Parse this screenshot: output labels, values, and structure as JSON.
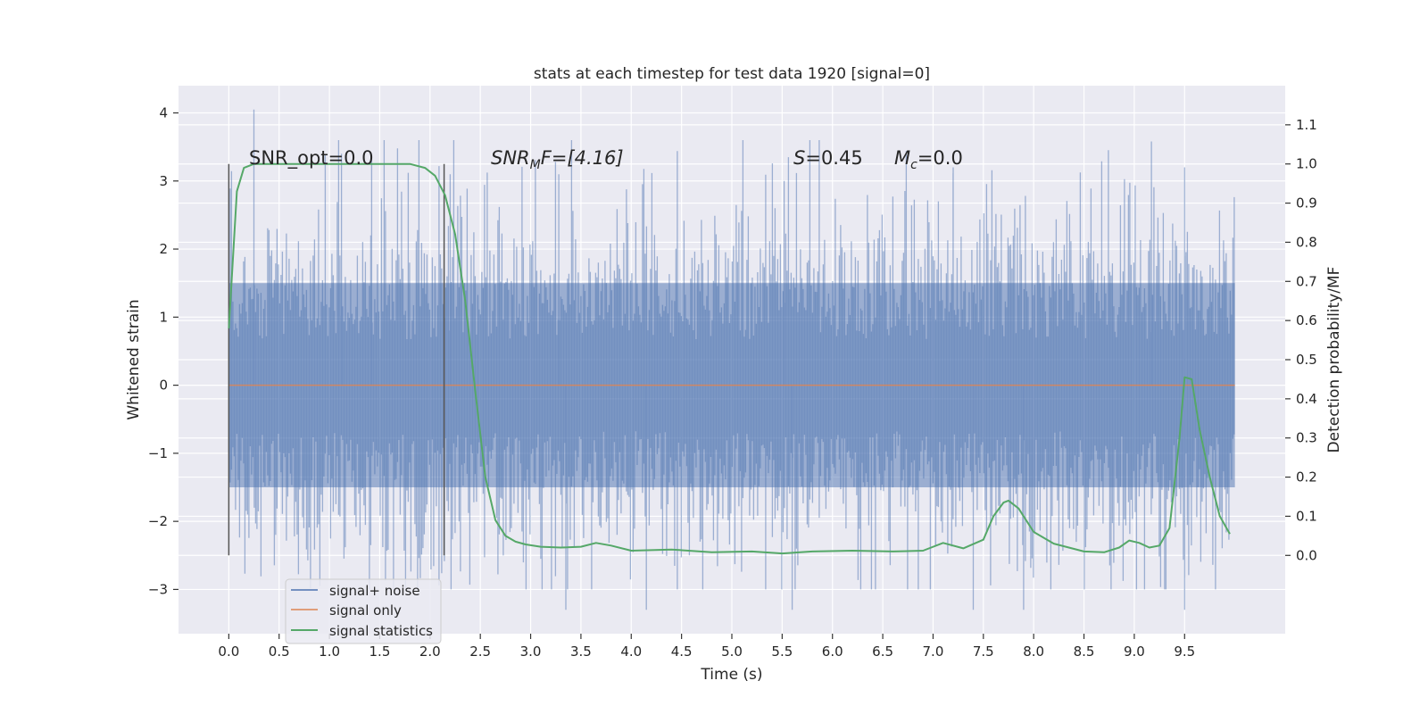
{
  "chart_data": {
    "type": "line",
    "title": "stats at each timestep for test data 1920 [signal=0]",
    "xlabel": "Time (s)",
    "ylabel": "Whitened strain",
    "ylabel_right": "Detection probability/MF",
    "xlim": [
      -0.5,
      10.5
    ],
    "ylim": [
      -3.65,
      4.4
    ],
    "ylim_right": [
      -0.2,
      1.2
    ],
    "x_ticks": [
      "0.0",
      "0.5",
      "1.0",
      "1.5",
      "2.0",
      "2.5",
      "3.0",
      "3.5",
      "4.0",
      "4.5",
      "5.0",
      "5.5",
      "6.0",
      "6.5",
      "7.0",
      "7.5",
      "8.0",
      "8.5",
      "9.0",
      "9.5"
    ],
    "y_ticks": [
      "4",
      "3",
      "2",
      "1",
      "0",
      "−1",
      "−2",
      "−3"
    ],
    "y_ticks_right": [
      "1.1",
      "1.0",
      "0.9",
      "0.8",
      "0.7",
      "0.6",
      "0.5",
      "0.4",
      "0.3",
      "0.2",
      "0.1",
      "0.0"
    ],
    "grid": true,
    "legend_placement": "lower-left",
    "colors": {
      "noise": "#4c72b0",
      "signal": "#dd8452",
      "stats": "#55a868",
      "background": "#eaeaf2",
      "grid": "#ffffff",
      "vline": "#555555"
    },
    "annotations": {
      "snr_opt": "SNR_opt=0.0",
      "snr_mf_main": "SNR",
      "snr_mf_sub": "M",
      "snr_mf_tail": "F=[4.16]",
      "s_sym": "S",
      "s_val": "=0.45",
      "mc_sym": "M",
      "mc_sub": "c",
      "mc_val": "=0.0"
    },
    "vertical_lines": [
      {
        "x": 0.0,
        "y_from": -2.5,
        "y_to": 3.25
      },
      {
        "x": 2.14,
        "y_from": -2.5,
        "y_to": 3.25
      }
    ],
    "series": [
      {
        "name": "signal+ noise",
        "x_range": [
          0.0,
          10.0
        ],
        "envelope_approx": {
          "typical_abs": 1.5,
          "max": 4.05,
          "min": -3.3
        }
      },
      {
        "name": "signal only",
        "x": [
          0.0,
          10.0
        ],
        "y": [
          0.0,
          0.0
        ]
      },
      {
        "name": "signal statistics",
        "axis": "right",
        "x": [
          0.0,
          0.08,
          0.15,
          0.25,
          0.4,
          0.6,
          1.0,
          1.5,
          1.8,
          1.95,
          2.05,
          2.15,
          2.25,
          2.35,
          2.45,
          2.55,
          2.65,
          2.75,
          2.85,
          2.95,
          3.1,
          3.3,
          3.5,
          3.65,
          3.8,
          4.0,
          4.4,
          4.8,
          5.2,
          5.5,
          5.8,
          6.2,
          6.6,
          6.9,
          7.1,
          7.3,
          7.5,
          7.6,
          7.7,
          7.75,
          7.85,
          8.0,
          8.2,
          8.5,
          8.7,
          8.85,
          8.95,
          9.05,
          9.15,
          9.25,
          9.35,
          9.45,
          9.5,
          9.57,
          9.65,
          9.75,
          9.85,
          9.95
        ],
        "y": [
          0.58,
          0.93,
          0.99,
          1.0,
          1.0,
          1.0,
          1.0,
          1.0,
          1.0,
          0.99,
          0.97,
          0.92,
          0.82,
          0.65,
          0.42,
          0.2,
          0.09,
          0.05,
          0.035,
          0.028,
          0.022,
          0.02,
          0.022,
          0.032,
          0.025,
          0.012,
          0.015,
          0.008,
          0.01,
          0.005,
          0.01,
          0.012,
          0.01,
          0.012,
          0.032,
          0.018,
          0.04,
          0.1,
          0.135,
          0.14,
          0.12,
          0.06,
          0.03,
          0.01,
          0.008,
          0.02,
          0.038,
          0.032,
          0.02,
          0.025,
          0.07,
          0.3,
          0.455,
          0.45,
          0.32,
          0.2,
          0.1,
          0.055
        ]
      }
    ]
  }
}
